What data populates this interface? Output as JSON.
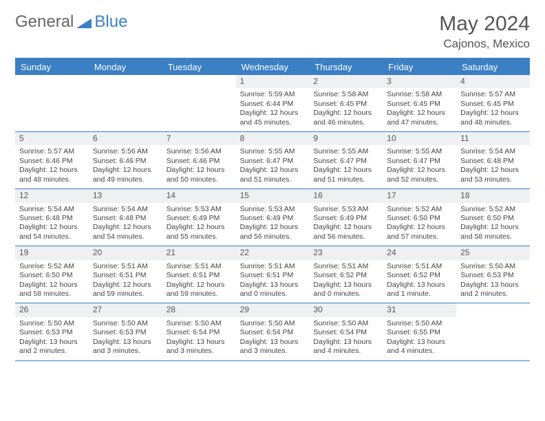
{
  "brand": {
    "part1": "General",
    "part2": "Blue"
  },
  "title": "May 2024",
  "location": "Cajonos, Mexico",
  "colors": {
    "accent": "#3b7fc4",
    "dayrow_bg": "#eef0f2",
    "text": "#444",
    "header_text": "#555"
  },
  "daynames": [
    "Sunday",
    "Monday",
    "Tuesday",
    "Wednesday",
    "Thursday",
    "Friday",
    "Saturday"
  ],
  "weeks": [
    [
      null,
      null,
      null,
      {
        "n": "1",
        "sr": "5:59 AM",
        "ss": "6:44 PM",
        "dl": "12 hours and 45 minutes."
      },
      {
        "n": "2",
        "sr": "5:58 AM",
        "ss": "6:45 PM",
        "dl": "12 hours and 46 minutes."
      },
      {
        "n": "3",
        "sr": "5:58 AM",
        "ss": "6:45 PM",
        "dl": "12 hours and 47 minutes."
      },
      {
        "n": "4",
        "sr": "5:57 AM",
        "ss": "6:45 PM",
        "dl": "12 hours and 48 minutes."
      }
    ],
    [
      {
        "n": "5",
        "sr": "5:57 AM",
        "ss": "6:46 PM",
        "dl": "12 hours and 48 minutes."
      },
      {
        "n": "6",
        "sr": "5:56 AM",
        "ss": "6:46 PM",
        "dl": "12 hours and 49 minutes."
      },
      {
        "n": "7",
        "sr": "5:56 AM",
        "ss": "6:46 PM",
        "dl": "12 hours and 50 minutes."
      },
      {
        "n": "8",
        "sr": "5:55 AM",
        "ss": "6:47 PM",
        "dl": "12 hours and 51 minutes."
      },
      {
        "n": "9",
        "sr": "5:55 AM",
        "ss": "6:47 PM",
        "dl": "12 hours and 51 minutes."
      },
      {
        "n": "10",
        "sr": "5:55 AM",
        "ss": "6:47 PM",
        "dl": "12 hours and 52 minutes."
      },
      {
        "n": "11",
        "sr": "5:54 AM",
        "ss": "6:48 PM",
        "dl": "12 hours and 53 minutes."
      }
    ],
    [
      {
        "n": "12",
        "sr": "5:54 AM",
        "ss": "6:48 PM",
        "dl": "12 hours and 54 minutes."
      },
      {
        "n": "13",
        "sr": "5:54 AM",
        "ss": "6:48 PM",
        "dl": "12 hours and 54 minutes."
      },
      {
        "n": "14",
        "sr": "5:53 AM",
        "ss": "6:49 PM",
        "dl": "12 hours and 55 minutes."
      },
      {
        "n": "15",
        "sr": "5:53 AM",
        "ss": "6:49 PM",
        "dl": "12 hours and 56 minutes."
      },
      {
        "n": "16",
        "sr": "5:53 AM",
        "ss": "6:49 PM",
        "dl": "12 hours and 56 minutes."
      },
      {
        "n": "17",
        "sr": "5:52 AM",
        "ss": "6:50 PM",
        "dl": "12 hours and 57 minutes."
      },
      {
        "n": "18",
        "sr": "5:52 AM",
        "ss": "6:50 PM",
        "dl": "12 hours and 58 minutes."
      }
    ],
    [
      {
        "n": "19",
        "sr": "5:52 AM",
        "ss": "6:50 PM",
        "dl": "12 hours and 58 minutes."
      },
      {
        "n": "20",
        "sr": "5:51 AM",
        "ss": "6:51 PM",
        "dl": "12 hours and 59 minutes."
      },
      {
        "n": "21",
        "sr": "5:51 AM",
        "ss": "6:51 PM",
        "dl": "12 hours and 59 minutes."
      },
      {
        "n": "22",
        "sr": "5:51 AM",
        "ss": "6:51 PM",
        "dl": "13 hours and 0 minutes."
      },
      {
        "n": "23",
        "sr": "5:51 AM",
        "ss": "6:52 PM",
        "dl": "13 hours and 0 minutes."
      },
      {
        "n": "24",
        "sr": "5:51 AM",
        "ss": "6:52 PM",
        "dl": "13 hours and 1 minute."
      },
      {
        "n": "25",
        "sr": "5:50 AM",
        "ss": "6:53 PM",
        "dl": "13 hours and 2 minutes."
      }
    ],
    [
      {
        "n": "26",
        "sr": "5:50 AM",
        "ss": "6:53 PM",
        "dl": "13 hours and 2 minutes."
      },
      {
        "n": "27",
        "sr": "5:50 AM",
        "ss": "6:53 PM",
        "dl": "13 hours and 3 minutes."
      },
      {
        "n": "28",
        "sr": "5:50 AM",
        "ss": "6:54 PM",
        "dl": "13 hours and 3 minutes."
      },
      {
        "n": "29",
        "sr": "5:50 AM",
        "ss": "6:54 PM",
        "dl": "13 hours and 3 minutes."
      },
      {
        "n": "30",
        "sr": "5:50 AM",
        "ss": "6:54 PM",
        "dl": "13 hours and 4 minutes."
      },
      {
        "n": "31",
        "sr": "5:50 AM",
        "ss": "6:55 PM",
        "dl": "13 hours and 4 minutes."
      },
      null
    ]
  ],
  "labels": {
    "sunrise": "Sunrise: ",
    "sunset": "Sunset: ",
    "daylight": "Daylight: "
  }
}
